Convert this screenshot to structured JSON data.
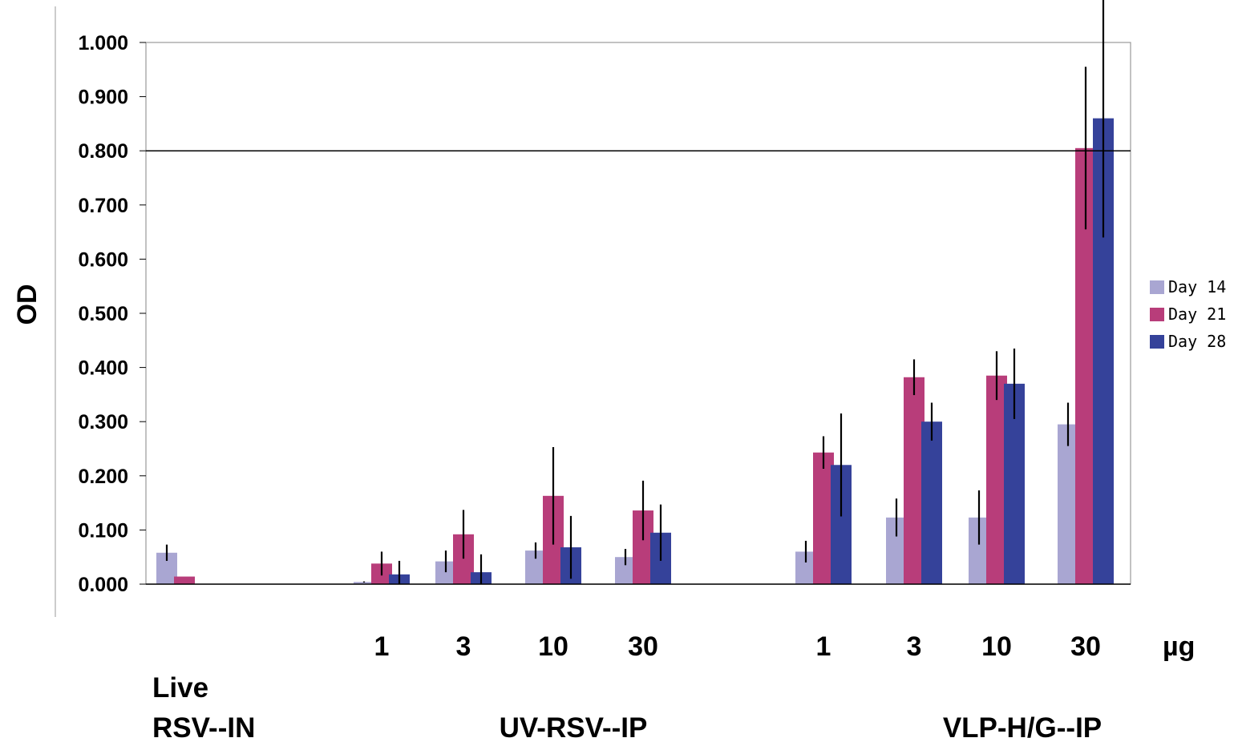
{
  "chart_data": {
    "type": "bar",
    "title": "",
    "ylabel": "OD",
    "xlabel": "",
    "ylim": [
      0,
      1.0
    ],
    "yticks": [
      "0.000",
      "0.100",
      "0.200",
      "0.300",
      "0.400",
      "0.500",
      "0.600",
      "0.700",
      "0.800",
      "0.900",
      "1.000"
    ],
    "reference_line": 0.8,
    "unit_label": "µg",
    "categories": [
      "",
      "1",
      "3",
      "10",
      "30",
      "1",
      "3",
      "10",
      "30"
    ],
    "groups": [
      {
        "lines": [
          "Live",
          "RSV--IN"
        ]
      },
      {
        "lines": [
          "UV-RSV--IP"
        ]
      },
      {
        "lines": [
          "VLP-H/G--IP"
        ]
      }
    ],
    "legend_position": "right",
    "series": [
      {
        "name": "Day 14",
        "color": "#a9a6d2",
        "values": [
          0.058,
          0.004,
          0.042,
          0.062,
          0.05,
          0.06,
          0.123,
          0.123,
          0.295
        ],
        "errors": [
          0.015,
          0.001,
          0.02,
          0.015,
          0.015,
          0.02,
          0.035,
          0.05,
          0.04
        ]
      },
      {
        "name": "Day 21",
        "color": "#b83d7a",
        "values": [
          0.014,
          0.038,
          0.092,
          0.163,
          0.136,
          0.243,
          0.382,
          0.385,
          0.805
        ],
        "errors": [
          0.0,
          0.022,
          0.045,
          0.09,
          0.055,
          0.03,
          0.033,
          0.045,
          0.15
        ]
      },
      {
        "name": "Day 28",
        "color": "#35429a",
        "values": [
          0.0,
          0.018,
          0.022,
          0.068,
          0.095,
          0.22,
          0.3,
          0.37,
          0.86
        ],
        "errors": [
          0.0,
          0.025,
          0.033,
          0.058,
          0.052,
          0.095,
          0.035,
          0.065,
          0.22
        ]
      }
    ]
  }
}
